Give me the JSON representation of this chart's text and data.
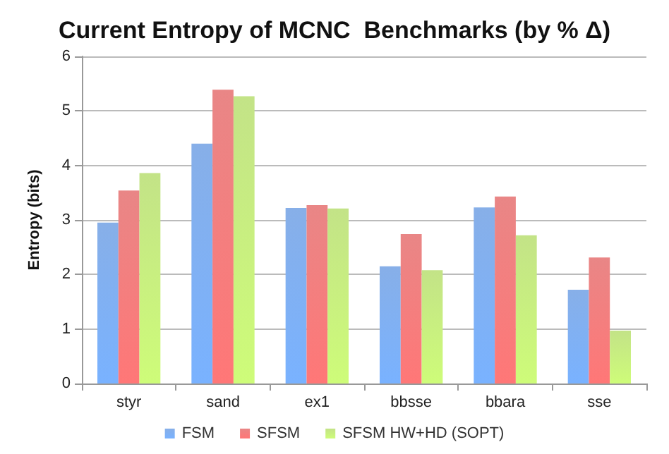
{
  "chart_data": {
    "type": "bar",
    "title": "Current Entropy of MCNC  Benchmarks (by % Δ)",
    "ylabel": "Entropy (bits)",
    "categories": [
      "styr",
      "sand",
      "ex1",
      "bbsse",
      "bbara",
      "sse"
    ],
    "series": [
      {
        "name": "FSM",
        "color": "#6a9be3",
        "values": [
          2.95,
          4.4,
          3.22,
          2.15,
          3.23,
          1.72
        ]
      },
      {
        "name": "SFSM",
        "color": "#e46868",
        "values": [
          3.54,
          5.39,
          3.27,
          2.74,
          3.43,
          2.31
        ]
      },
      {
        "name": "SFSM HW+HD (SOPT)",
        "color": "#b4dc6a",
        "values": [
          3.86,
          5.27,
          3.21,
          2.08,
          2.72,
          0.97
        ]
      }
    ],
    "ylim": [
      0,
      6
    ],
    "yticks": [
      0,
      1,
      2,
      3,
      4,
      5,
      6
    ],
    "grid": "y",
    "legend": "bottom"
  }
}
